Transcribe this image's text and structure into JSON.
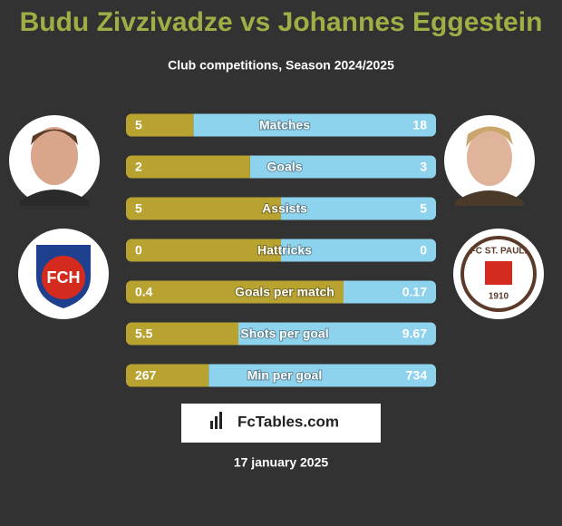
{
  "header": {
    "title": "Budu Zivzivadze vs Johannes Eggestein",
    "subtitle": "Club competitions, Season 2024/2025"
  },
  "left_club": {
    "logo_text": "FCH"
  },
  "right_club": {
    "logo_text": "FC ST. PAULI",
    "year": "1910"
  },
  "colors": {
    "left": "#b8a331",
    "right": "#8ed3ee"
  },
  "rows": [
    {
      "label": "Matches",
      "left": 5,
      "right": 18
    },
    {
      "label": "Goals",
      "left": 2,
      "right": 3
    },
    {
      "label": "Assists",
      "left": 5,
      "right": 5
    },
    {
      "label": "Hattricks",
      "left": 0,
      "right": 0
    },
    {
      "label": "Goals per match",
      "left": 0.4,
      "right": 0.17
    },
    {
      "label": "Shots per goal",
      "left": 5.5,
      "right": 9.67
    },
    {
      "label": "Min per goal",
      "left": 267,
      "right": 734
    }
  ],
  "brand": "FcTables.com",
  "date": "17 january 2025"
}
